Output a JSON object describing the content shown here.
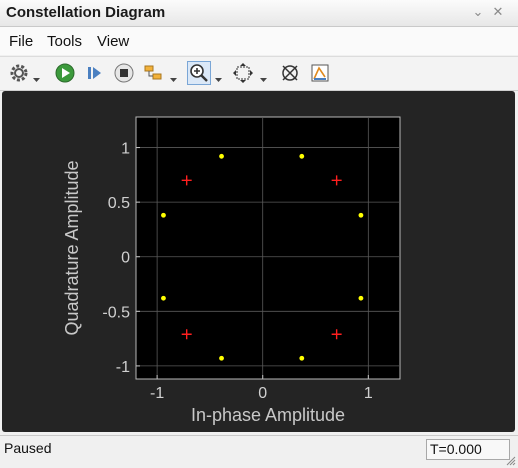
{
  "window": {
    "title": "Constellation Diagram",
    "minimize_glyph": "⌄",
    "close_glyph": "✕"
  },
  "menu": {
    "items": [
      "File",
      "Tools",
      "View"
    ]
  },
  "toolbar": {
    "icons": [
      "settings-icon",
      "run-icon",
      "step-forward-icon",
      "stop-icon",
      "signal-selector-icon",
      "zoom-in-icon",
      "fit-to-view-icon",
      "reference-constellation-icon",
      "measurements-icon"
    ],
    "active": "zoom-in-icon"
  },
  "chart_data": {
    "type": "scatter",
    "xlabel": "In-phase Amplitude",
    "ylabel": "Quadrature Amplitude",
    "xlim": [
      -1.2,
      1.3
    ],
    "ylim": [
      -1.12,
      1.28
    ],
    "xticks": [
      -1,
      0,
      1
    ],
    "yticks": [
      1,
      0.5,
      0,
      -0.5,
      -1
    ],
    "xtick_labels": [
      "-1",
      "0",
      "1"
    ],
    "ytick_labels": [
      "1",
      "0.5",
      "0",
      "-0.5",
      "-1"
    ],
    "grid": true,
    "background": "#000000",
    "series": [
      {
        "marker": "dot",
        "color": "#ffff00",
        "points": [
          [
            -0.39,
            0.92
          ],
          [
            0.37,
            0.92
          ],
          [
            -0.94,
            0.38
          ],
          [
            0.93,
            0.38
          ],
          [
            -0.94,
            -0.38
          ],
          [
            0.93,
            -0.38
          ],
          [
            -0.39,
            -0.93
          ],
          [
            0.37,
            -0.93
          ]
        ]
      },
      {
        "marker": "plus",
        "color": "#ff1f1f",
        "points": [
          [
            -0.72,
            0.7
          ],
          [
            0.7,
            0.7
          ],
          [
            -0.72,
            -0.71
          ],
          [
            0.7,
            -0.71
          ]
        ]
      }
    ]
  },
  "status": {
    "state": "Paused",
    "time": "T=0.000"
  }
}
